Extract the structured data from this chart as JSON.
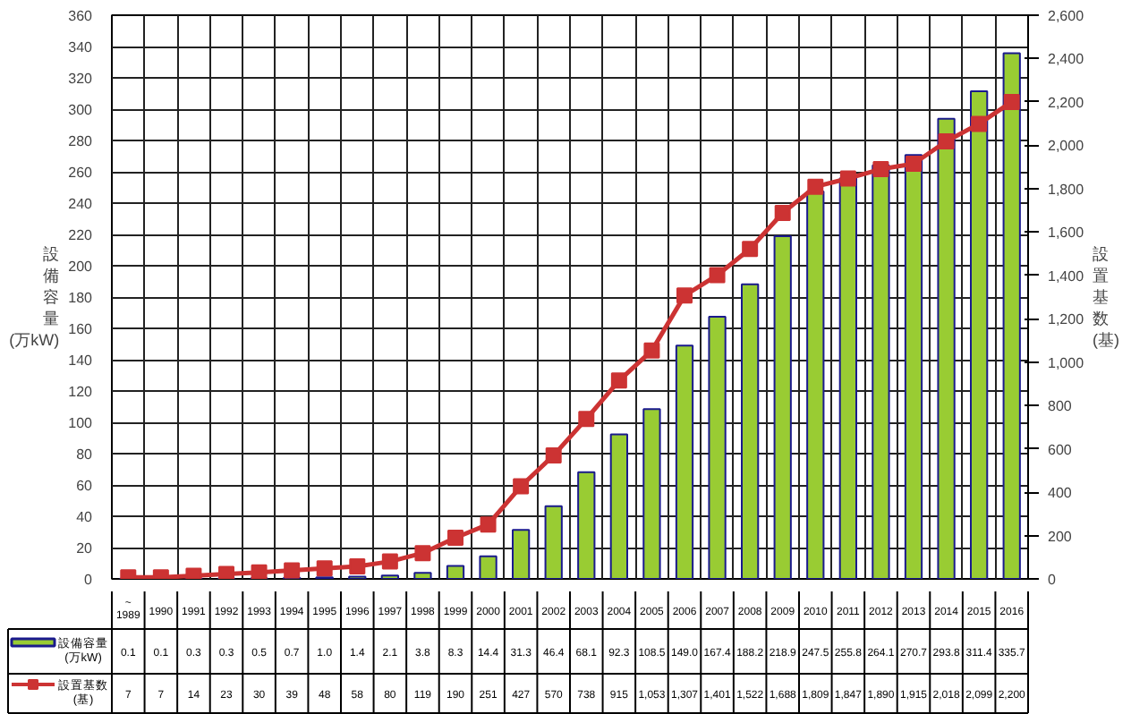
{
  "chart_data": {
    "type": "bar",
    "categories": [
      "~\n1989",
      "1990",
      "1991",
      "1992",
      "1993",
      "1994",
      "1995",
      "1996",
      "1997",
      "1998",
      "1999",
      "2000",
      "2001",
      "2002",
      "2003",
      "2004",
      "2005",
      "2006",
      "2007",
      "2008",
      "2009",
      "2010",
      "2011",
      "2012",
      "2013",
      "2014",
      "2015",
      "2016"
    ],
    "series": [
      {
        "name": "設備容量\n(万kW)",
        "color": "#99cc33",
        "values": [
          0.1,
          0.1,
          0.3,
          0.3,
          0.5,
          0.7,
          1.0,
          1.4,
          2.1,
          3.8,
          8.3,
          14.4,
          31.3,
          46.4,
          68.1,
          92.3,
          108.5,
          149.0,
          167.4,
          188.2,
          218.9,
          247.5,
          255.8,
          264.1,
          270.7,
          293.8,
          311.4,
          335.7
        ],
        "value_labels": [
          "0.1",
          "0.1",
          "0.3",
          "0.3",
          "0.5",
          "0.7",
          "1.0",
          "1.4",
          "2.1",
          "3.8",
          "8.3",
          "14.4",
          "31.3",
          "46.4",
          "68.1",
          "92.3",
          "108.5",
          "149.0",
          "167.4",
          "188.2",
          "218.9",
          "247.5",
          "255.8",
          "264.1",
          "270.7",
          "293.8",
          "311.4",
          "335.7"
        ]
      },
      {
        "name": "設置基数\n(基)",
        "type": "line",
        "axis": "y2",
        "color": "#cc3333",
        "values": [
          7,
          7,
          14,
          23,
          30,
          39,
          48,
          58,
          80,
          119,
          190,
          251,
          427,
          570,
          738,
          915,
          1053,
          1307,
          1401,
          1522,
          1688,
          1809,
          1847,
          1890,
          1915,
          2018,
          2099,
          2200
        ],
        "value_labels": [
          "7",
          "7",
          "14",
          "23",
          "30",
          "39",
          "48",
          "58",
          "80",
          "119",
          "190",
          "251",
          "427",
          "570",
          "738",
          "915",
          "1,053",
          "1,307",
          "1,401",
          "1,522",
          "1,688",
          "1,809",
          "1,847",
          "1,890",
          "1,915",
          "2,018",
          "2,099",
          "2,200"
        ]
      }
    ],
    "ylabel": "設備容量\n(万kW)",
    "y2label": "設置基数\n(基)",
    "ylim": [
      0,
      360
    ],
    "yticks": [
      0,
      20,
      40,
      60,
      80,
      100,
      120,
      140,
      160,
      180,
      200,
      220,
      240,
      260,
      280,
      300,
      320,
      340,
      360
    ],
    "y2lim": [
      0,
      2600
    ],
    "y2ticks": [
      0,
      200,
      400,
      600,
      800,
      {
        "value": 1000,
        "label": "1,000"
      },
      {
        "value": 1200,
        "label": "1,200"
      },
      {
        "value": 1400,
        "label": "1,400"
      },
      {
        "value": 1600,
        "label": "1,600"
      },
      {
        "value": 1800,
        "label": "1,800"
      },
      {
        "value": 2000,
        "label": "2,000"
      },
      {
        "value": 2200,
        "label": "2,200"
      },
      {
        "value": 2400,
        "label": "2,400"
      },
      {
        "value": 2600,
        "label": "2,600"
      }
    ],
    "grid": true,
    "legend": "bottom left",
    "marker": "square",
    "line_style": "solid"
  }
}
